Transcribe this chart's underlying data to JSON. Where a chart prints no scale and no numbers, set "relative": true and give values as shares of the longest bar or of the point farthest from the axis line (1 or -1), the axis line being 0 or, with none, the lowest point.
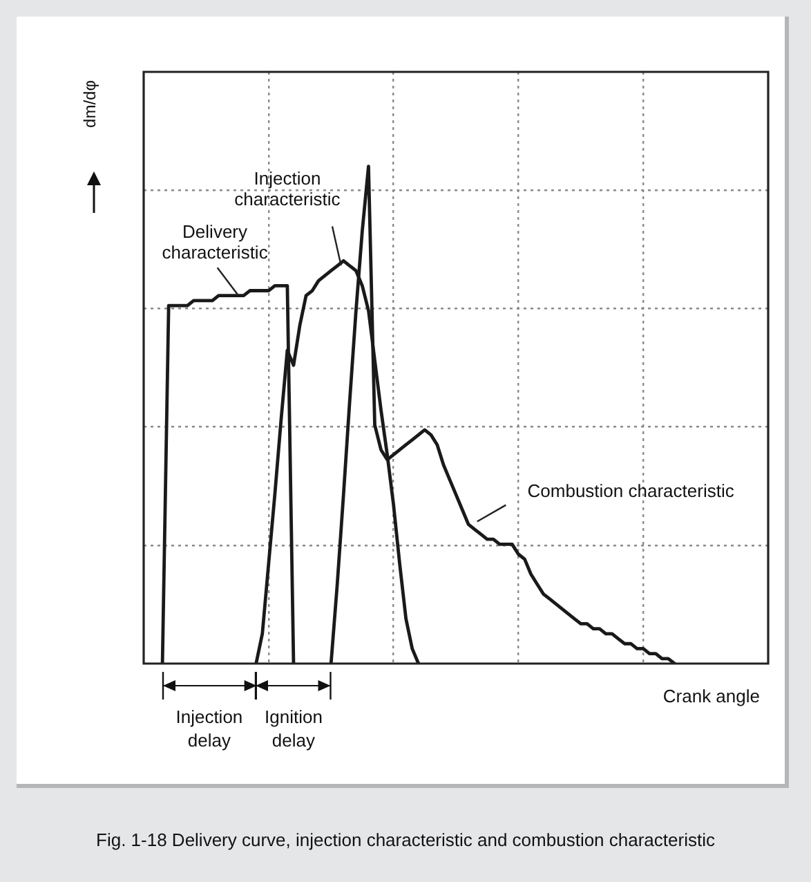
{
  "chart_data": {
    "type": "line",
    "relative": true,
    "ylabel": "dm/dφ",
    "xlabel": "Crank angle",
    "categories": [
      null,
      null,
      null,
      null,
      null,
      null,
      null,
      null,
      null,
      null,
      null,
      null,
      null,
      null,
      null,
      null,
      null,
      null,
      null,
      null,
      null,
      null,
      null,
      null,
      null,
      null,
      null,
      null,
      null,
      null,
      null,
      null,
      null,
      null,
      null,
      null,
      null,
      null,
      null,
      null,
      null,
      null,
      null,
      null,
      null,
      null,
      null,
      null,
      null,
      null,
      null,
      null,
      null,
      null,
      null,
      null,
      null,
      null,
      null,
      null,
      null,
      null,
      null,
      null,
      null,
      null,
      null,
      null,
      null,
      null,
      null,
      null,
      null,
      null,
      null,
      null,
      null,
      null,
      null,
      null,
      null,
      null,
      null,
      null,
      null,
      null,
      null,
      null,
      null,
      null,
      null,
      null,
      null,
      null,
      null,
      null,
      null,
      null,
      null,
      null,
      null
    ],
    "series": [
      {
        "name": "Delivery characteristic",
        "color": "#1a1a1a",
        "values": [
          null,
          null,
          null,
          0,
          0.72,
          0.72,
          0.72,
          0.72,
          0.73,
          0.73,
          0.73,
          0.73,
          0.74,
          0.74,
          0.74,
          0.74,
          0.74,
          0.75,
          0.75,
          0.75,
          0.75,
          0.76,
          0.76,
          0.76,
          0,
          null,
          null,
          null,
          null,
          null,
          null,
          null,
          null,
          null,
          null,
          null,
          null,
          null,
          null,
          null,
          null,
          null,
          null,
          null,
          null,
          null,
          null,
          null,
          null,
          null,
          null,
          null,
          null,
          null,
          null,
          null,
          null,
          null,
          null,
          null,
          null,
          null,
          null,
          null,
          null,
          null,
          null,
          null,
          null,
          null,
          null,
          null,
          null,
          null,
          null,
          null,
          null,
          null,
          null,
          null,
          null,
          null,
          null,
          null,
          null,
          null,
          null,
          null,
          null,
          null,
          null,
          null,
          null,
          null,
          null,
          null,
          null,
          null,
          null,
          null,
          null
        ]
      },
      {
        "name": "Injection characteristic",
        "color": "#1a1a1a",
        "values": [
          null,
          null,
          null,
          null,
          null,
          null,
          null,
          null,
          null,
          null,
          null,
          null,
          null,
          null,
          null,
          null,
          null,
          null,
          0,
          0.06,
          0.2,
          0.34,
          0.49,
          0.63,
          0.6,
          0.68,
          0.74,
          0.75,
          0.77,
          0.78,
          0.79,
          0.8,
          0.81,
          0.8,
          0.79,
          0.76,
          0.71,
          0.61,
          0.51,
          0.42,
          0.32,
          0.2,
          0.09,
          0.03,
          0,
          null,
          null,
          null,
          null,
          null,
          null,
          null,
          null,
          null,
          null,
          null,
          null,
          null,
          null,
          null,
          null,
          null,
          null,
          null,
          null,
          null,
          null,
          null,
          null,
          null,
          null,
          null,
          null,
          null,
          null,
          null,
          null,
          null,
          null,
          null,
          null,
          null,
          null,
          null,
          null,
          null,
          null,
          null,
          null,
          null,
          null,
          null,
          null,
          null,
          null,
          null,
          null,
          null,
          null,
          null,
          null
        ]
      },
      {
        "name": "Combustion characteristic",
        "color": "#1a1a1a",
        "values": [
          null,
          null,
          null,
          null,
          null,
          null,
          null,
          null,
          null,
          null,
          null,
          null,
          null,
          null,
          null,
          null,
          null,
          null,
          null,
          null,
          null,
          null,
          null,
          null,
          null,
          null,
          null,
          null,
          null,
          null,
          0,
          0.16,
          0.34,
          0.53,
          0.71,
          0.87,
          1,
          0.48,
          0.43,
          0.41,
          0.42,
          0.43,
          0.44,
          0.45,
          0.46,
          0.47,
          0.46,
          0.44,
          0.4,
          0.37,
          0.34,
          0.31,
          0.28,
          0.27,
          0.26,
          0.25,
          0.25,
          0.24,
          0.24,
          0.24,
          0.22,
          0.21,
          0.18,
          0.16,
          0.14,
          0.13,
          0.12,
          0.11,
          0.1,
          0.09,
          0.08,
          0.08,
          0.07,
          0.07,
          0.06,
          0.06,
          0.05,
          0.04,
          0.04,
          0.03,
          0.03,
          0.02,
          0.02,
          0.01,
          0.01,
          0,
          null,
          null,
          null,
          null,
          null,
          null,
          null,
          null,
          null,
          null,
          null,
          null,
          null,
          null,
          null
        ]
      }
    ],
    "grid": true,
    "legend": false,
    "tick_labels": false,
    "marker": "none",
    "line_style": "solid",
    "annotations": [
      "Injection delay",
      "Ignition delay",
      "Fig. 1-18 Delivery curve, injection characteristic and combustion characteristic"
    ]
  }
}
